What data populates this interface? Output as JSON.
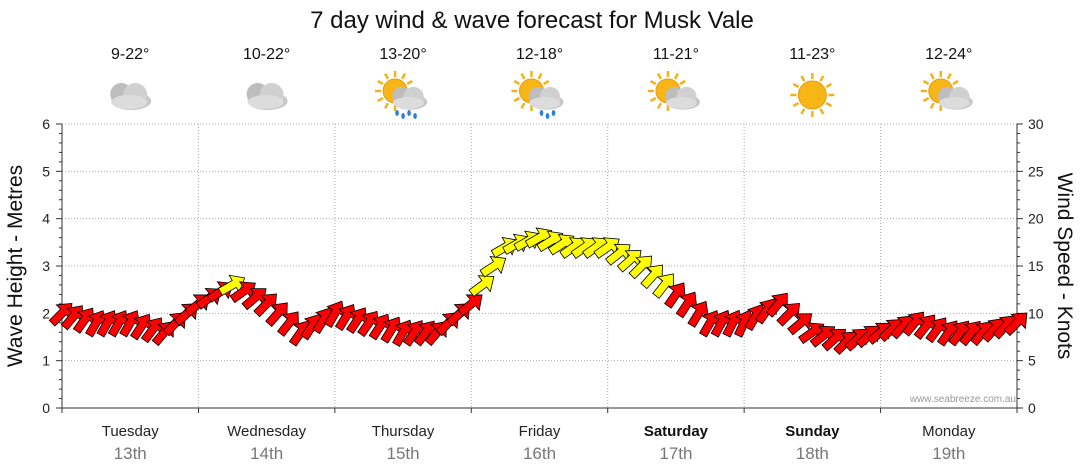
{
  "chart_data": {
    "type": "line",
    "title": "7 day wind & wave forecast for Musk Vale",
    "ylabel_left": "Wave Height - Metres",
    "ylabel_right": "Wind Speed - Knots",
    "ylim_left": [
      0,
      6
    ],
    "ylim_right": [
      0,
      30
    ],
    "yticks_left": [
      "0",
      "1",
      "2",
      "3",
      "4",
      "5",
      "6"
    ],
    "yticks_right": [
      "0",
      "5",
      "10",
      "15",
      "20",
      "25",
      "30"
    ],
    "grid": true,
    "credit": "www.seabreeze.com.au",
    "days": [
      {
        "name": "Tuesday",
        "date": "13th",
        "temp": "9-22°",
        "weather": "cloudy",
        "bold": false
      },
      {
        "name": "Wednesday",
        "date": "14th",
        "temp": "10-22°",
        "weather": "cloudy",
        "bold": false
      },
      {
        "name": "Thursday",
        "date": "15th",
        "temp": "13-20°",
        "weather": "sun-cloud-rain",
        "bold": false
      },
      {
        "name": "Friday",
        "date": "16th",
        "temp": "12-18°",
        "weather": "sun-cloud-showers",
        "bold": false
      },
      {
        "name": "Saturday",
        "date": "17th",
        "temp": "11-21°",
        "weather": "sun-cloud",
        "bold": true
      },
      {
        "name": "Sunday",
        "date": "18th",
        "temp": "11-23°",
        "weather": "sunny",
        "bold": true
      },
      {
        "name": "Monday",
        "date": "19th",
        "temp": "12-24°",
        "weather": "sun-cloud",
        "bold": false
      }
    ],
    "series": [
      {
        "name": "Wind Speed",
        "unit": "knots",
        "x_hours": [
          0,
          6,
          12,
          18,
          24,
          30,
          36,
          42,
          48,
          54,
          60,
          66,
          72,
          78,
          84,
          90,
          96,
          102,
          108,
          114,
          120,
          126,
          132,
          138,
          144,
          150,
          156,
          162,
          168
        ],
        "values": [
          10,
          9,
          9,
          8,
          11,
          13,
          11,
          8,
          10,
          9,
          8,
          8,
          11,
          17,
          18,
          17,
          17,
          15,
          12,
          9,
          9,
          11,
          8,
          7,
          8,
          9,
          8,
          8,
          9
        ],
        "direction_deg": [
          45,
          60,
          60,
          50,
          40,
          30,
          45,
          55,
          60,
          55,
          60,
          50,
          40,
          30,
          30,
          35,
          35,
          45,
          55,
          60,
          65,
          50,
          35,
          45,
          40,
          50,
          55,
          50,
          45
        ],
        "color_by_speed": {
          "red": "< 10 kn",
          "yellow": ">= 13 kn"
        }
      }
    ]
  },
  "colors": {
    "wind_low": "#ff0000",
    "wind_high": "#ffff00",
    "grid": "#999999",
    "date_text": "#777777"
  }
}
